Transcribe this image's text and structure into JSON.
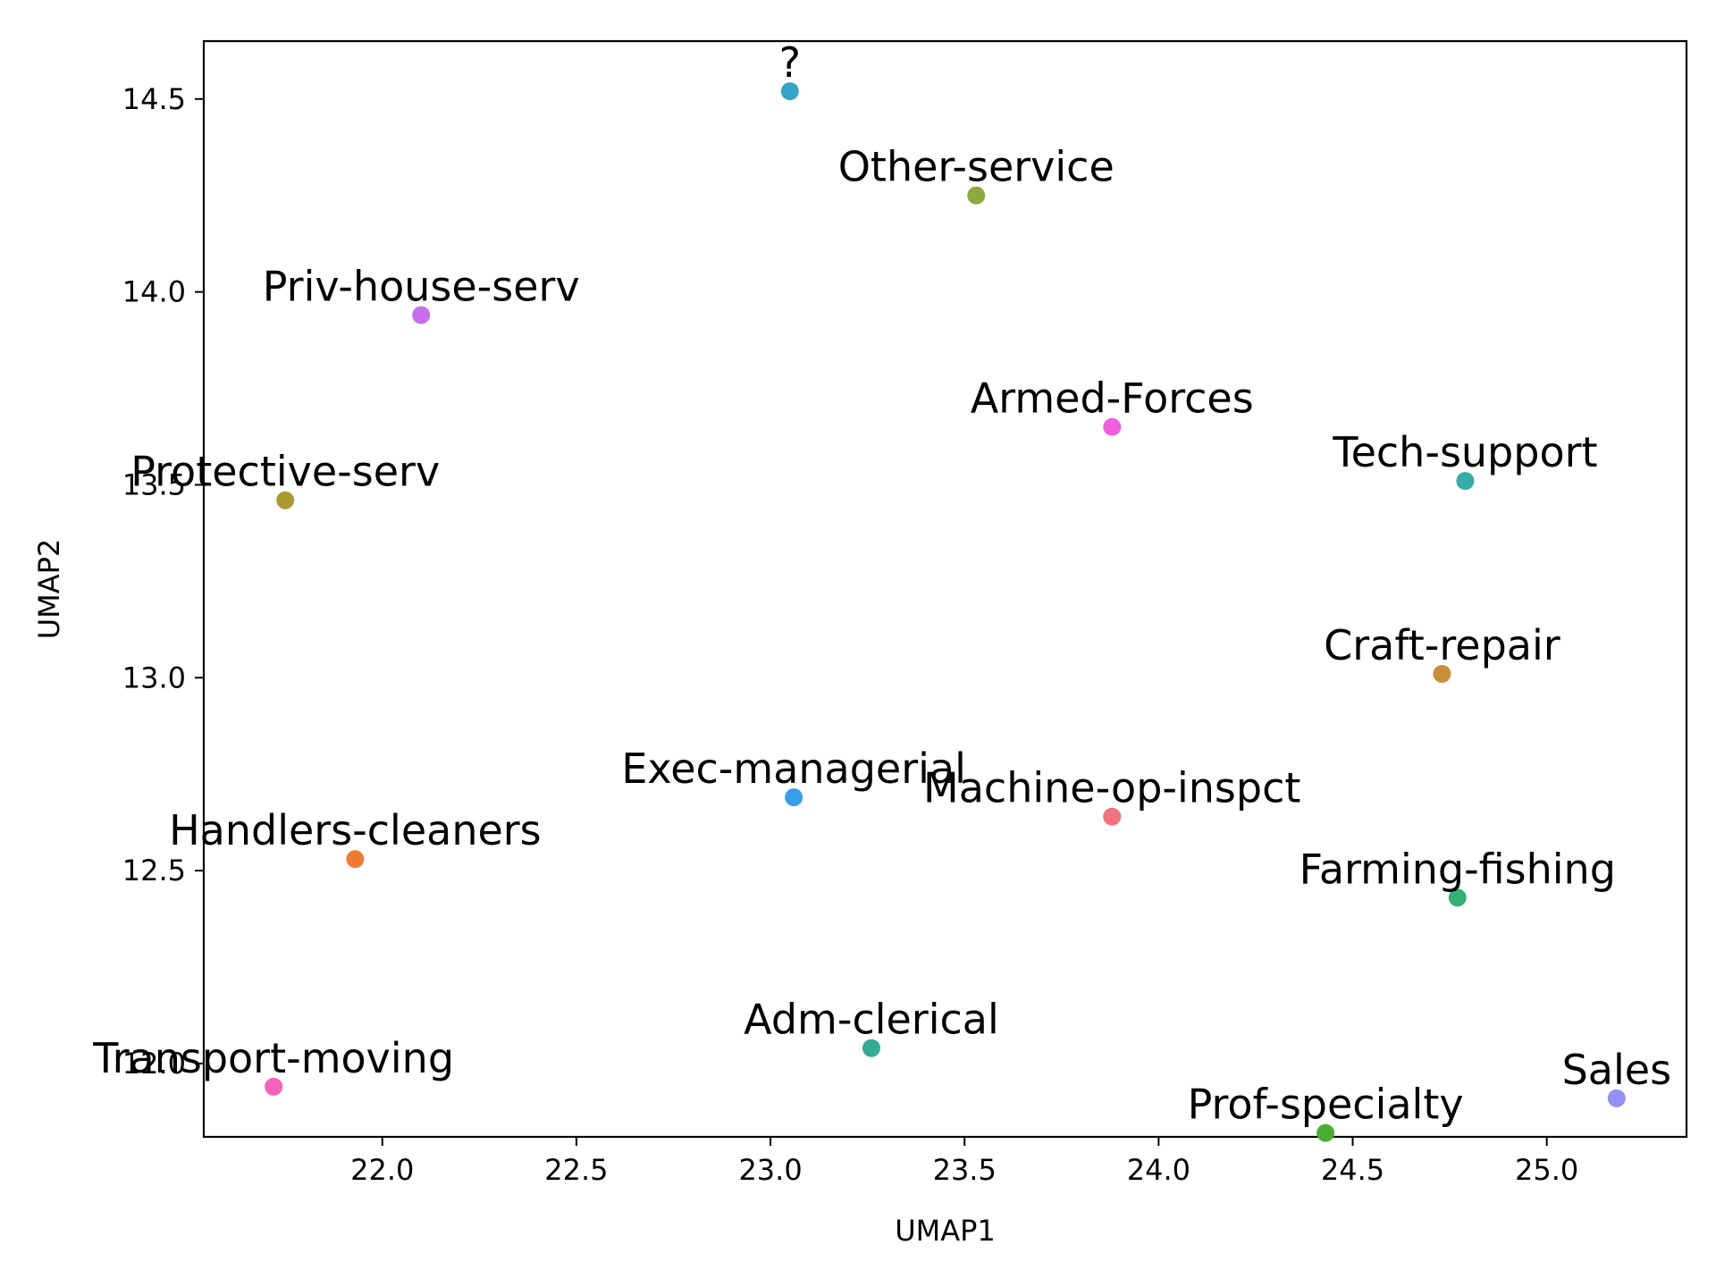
{
  "chart_data": {
    "type": "scatter",
    "title": "",
    "xlabel": "UMAP1",
    "ylabel": "UMAP2",
    "xlim": [
      21.54,
      25.36
    ],
    "ylim": [
      11.81,
      14.65
    ],
    "grid": false,
    "legend": "none",
    "xticks": [
      22.0,
      22.5,
      23.0,
      23.5,
      24.0,
      24.5,
      25.0
    ],
    "xtick_labels": [
      "22.0",
      "22.5",
      "23.0",
      "23.5",
      "24.0",
      "24.5",
      "25.0"
    ],
    "yticks": [
      12.0,
      12.5,
      13.0,
      13.5,
      14.0,
      14.5
    ],
    "ytick_labels": [
      "12.0",
      "12.5",
      "13.0",
      "13.5",
      "14.0",
      "14.5"
    ],
    "points": [
      {
        "label": "?",
        "x": 23.05,
        "y": 14.52,
        "color": "#36a2c7"
      },
      {
        "label": "Other-service",
        "x": 23.53,
        "y": 14.25,
        "color": "#8ea93c"
      },
      {
        "label": "Priv-house-serv",
        "x": 22.1,
        "y": 13.94,
        "color": "#c76ee8"
      },
      {
        "label": "Armed-Forces",
        "x": 23.88,
        "y": 13.65,
        "color": "#f15fe0"
      },
      {
        "label": "Protective-serv",
        "x": 21.75,
        "y": 13.46,
        "color": "#ab9a2f"
      },
      {
        "label": "Tech-support",
        "x": 24.79,
        "y": 13.51,
        "color": "#32ada8"
      },
      {
        "label": "Craft-repair",
        "x": 24.73,
        "y": 13.01,
        "color": "#c98f38"
      },
      {
        "label": "Exec-managerial",
        "x": 23.06,
        "y": 12.69,
        "color": "#3a9deb"
      },
      {
        "label": "Machine-op-inspct",
        "x": 23.88,
        "y": 12.64,
        "color": "#f0727f"
      },
      {
        "label": "Handlers-cleaners",
        "x": 21.93,
        "y": 12.53,
        "color": "#f07a30"
      },
      {
        "label": "Farming-fishing",
        "x": 24.77,
        "y": 12.43,
        "color": "#33b172"
      },
      {
        "label": "Adm-clerical",
        "x": 23.26,
        "y": 12.04,
        "color": "#35ab94"
      },
      {
        "label": "Transport-moving",
        "x": 21.72,
        "y": 11.94,
        "color": "#f662b8"
      },
      {
        "label": "Prof-specialty",
        "x": 24.43,
        "y": 11.82,
        "color": "#4aae32"
      },
      {
        "label": "Sales",
        "x": 25.18,
        "y": 11.91,
        "color": "#9190f4"
      }
    ]
  }
}
